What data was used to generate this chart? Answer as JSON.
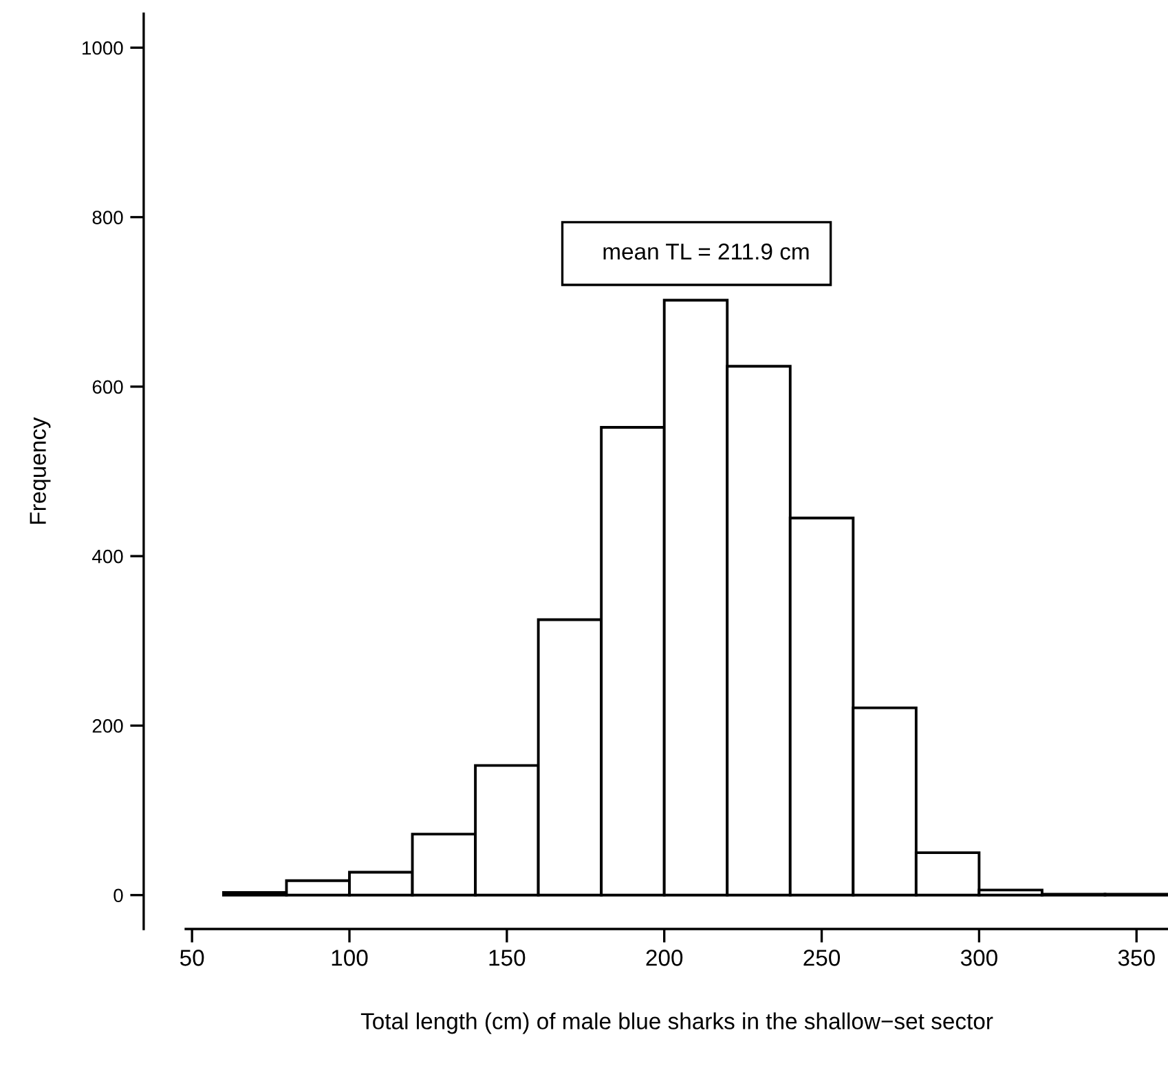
{
  "chart_data": {
    "type": "histogram",
    "xlabel": "Total length (cm) of male blue sharks in the shallow−set sector",
    "ylabel": "Frequency",
    "bins": [
      60,
      80,
      100,
      120,
      140,
      160,
      180,
      200,
      220,
      240,
      260,
      280,
      300,
      320,
      340,
      360
    ],
    "values": [
      3,
      17,
      27,
      72,
      153,
      325,
      552,
      702,
      624,
      445,
      221,
      50,
      6,
      1,
      1
    ],
    "color": "#ffffff",
    "annotations": [
      "mean TL = 211.9 cm"
    ],
    "xlim": [
      48,
      360
    ],
    "ylim": [
      -40,
      1040
    ],
    "xticks": [
      50,
      100,
      150,
      200,
      250,
      300,
      350
    ],
    "yticks": [
      0,
      200,
      400,
      600,
      800,
      1000
    ],
    "grid": false,
    "legend": false
  }
}
